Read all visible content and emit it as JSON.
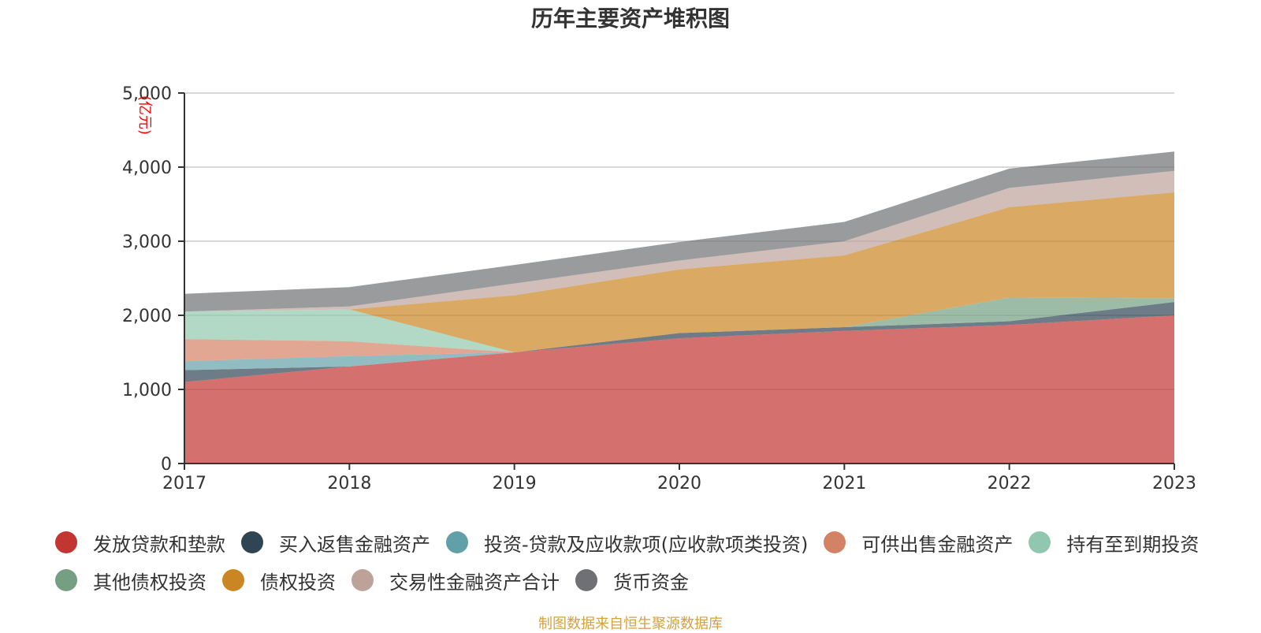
{
  "chart_data": {
    "type": "area",
    "stacked": true,
    "title": "历年主要资产堆积图",
    "ylabel": "(亿元)",
    "xlabel": "",
    "x": [
      "2017",
      "2018",
      "2019",
      "2020",
      "2021",
      "2022",
      "2023"
    ],
    "ylim": [
      0,
      5000
    ],
    "yticks": [
      0,
      1000,
      2000,
      3000,
      4000,
      5000
    ],
    "ytick_labels": [
      "0",
      "1,000",
      "2,000",
      "3,000",
      "4,000",
      "5,000"
    ],
    "grid": true,
    "legend_position": "bottom",
    "series": [
      {
        "name": "发放贷款和垫款",
        "color": "#c23531",
        "values": [
          1100,
          1310,
          1500,
          1690,
          1790,
          1870,
          2000
        ]
      },
      {
        "name": "买入返售金融资产",
        "color": "#2f4554",
        "values": [
          160,
          0,
          0,
          70,
          50,
          50,
          180
        ]
      },
      {
        "name": "投资-贷款及应收款项(应收款项类投资)",
        "color": "#61a0a8",
        "values": [
          120,
          140,
          0,
          0,
          0,
          0,
          0
        ]
      },
      {
        "name": "可供出售金融资产",
        "color": "#d48265",
        "values": [
          300,
          200,
          0,
          0,
          0,
          0,
          0
        ]
      },
      {
        "name": "持有至到期投资",
        "color": "#91c7ae",
        "values": [
          370,
          430,
          0,
          0,
          0,
          0,
          0
        ]
      },
      {
        "name": "其他债权投资",
        "color": "#749f83",
        "values": [
          0,
          0,
          0,
          0,
          0,
          320,
          50
        ]
      },
      {
        "name": "债权投资",
        "color": "#ca8622",
        "values": [
          0,
          0,
          770,
          860,
          970,
          1220,
          1430
        ]
      },
      {
        "name": "交易性金融资产合计",
        "color": "#bda29a",
        "values": [
          0,
          40,
          160,
          120,
          190,
          260,
          290
        ]
      },
      {
        "name": "货币资金",
        "color": "#6e7074",
        "values": [
          240,
          260,
          250,
          250,
          260,
          260,
          260
        ]
      }
    ]
  },
  "source_note": "制图数据来自恒生聚源数据库"
}
